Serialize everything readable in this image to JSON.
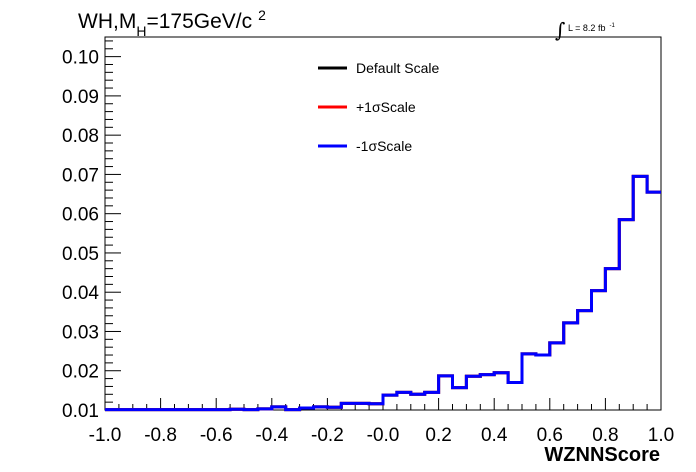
{
  "title": {
    "prefix": "WH,M",
    "subscript": "H",
    "suffix": "=175GeV/c",
    "superscript": "2"
  },
  "luminosity": {
    "integral": "∫",
    "text": "L = 8.2 fb",
    "superscript": "-1"
  },
  "chart_data": {
    "type": "line",
    "xlabel": "WZNNScore",
    "ylabel": "",
    "xlim": [
      -1.0,
      1.0
    ],
    "ylim": [
      0.01,
      0.105
    ],
    "x_ticks": [
      "-1.0",
      "-0.8",
      "-0.6",
      "-0.4",
      "-0.2",
      "-0.0",
      "0.2",
      "0.4",
      "0.6",
      "0.8",
      "1.0"
    ],
    "y_ticks": [
      "0.01",
      "0.02",
      "0.03",
      "0.04",
      "0.05",
      "0.06",
      "0.07",
      "0.08",
      "0.09",
      "0.10"
    ],
    "grid": false,
    "legend_position": "top-center",
    "bin_edges": [
      -1.0,
      -0.95,
      -0.9,
      -0.85,
      -0.8,
      -0.75,
      -0.7,
      -0.65,
      -0.6,
      -0.55,
      -0.5,
      -0.45,
      -0.4,
      -0.35,
      -0.3,
      -0.25,
      -0.2,
      -0.15,
      -0.1,
      -0.05,
      0.0,
      0.05,
      0.1,
      0.15,
      0.2,
      0.25,
      0.3,
      0.35,
      0.4,
      0.45,
      0.5,
      0.55,
      0.6,
      0.65,
      0.7,
      0.75,
      0.8,
      0.85,
      0.9,
      0.95,
      1.0
    ],
    "series": [
      {
        "name": "Default Scale",
        "color": "#000000",
        "values": [
          0.0101,
          0.0101,
          0.0101,
          0.0101,
          0.0101,
          0.0101,
          0.0101,
          0.0101,
          0.0101,
          0.0102,
          0.0101,
          0.0103,
          0.0108,
          0.0101,
          0.0105,
          0.0108,
          0.0107,
          0.0117,
          0.0117,
          0.0116,
          0.0138,
          0.0145,
          0.014,
          0.0145,
          0.0187,
          0.0157,
          0.0186,
          0.019,
          0.0195,
          0.017,
          0.0243,
          0.024,
          0.0271,
          0.0322,
          0.0353,
          0.0404,
          0.046,
          0.0585,
          0.0695,
          0.0655
        ]
      },
      {
        "name": "+1σScale",
        "color": "#ff0000",
        "values": [
          0.0101,
          0.0101,
          0.0101,
          0.0101,
          0.0101,
          0.0101,
          0.0101,
          0.0101,
          0.0101,
          0.0102,
          0.0101,
          0.0103,
          0.0108,
          0.0101,
          0.0105,
          0.0108,
          0.0107,
          0.0117,
          0.0117,
          0.0116,
          0.0138,
          0.0145,
          0.014,
          0.0145,
          0.0187,
          0.0157,
          0.0186,
          0.019,
          0.0195,
          0.017,
          0.0243,
          0.024,
          0.0271,
          0.0322,
          0.0353,
          0.0404,
          0.046,
          0.0585,
          0.0695,
          0.0655
        ]
      },
      {
        "name": "-1σScale",
        "color": "#0000ff",
        "values": [
          0.0101,
          0.0101,
          0.0101,
          0.0101,
          0.0101,
          0.0101,
          0.0101,
          0.0101,
          0.0101,
          0.0102,
          0.0101,
          0.0103,
          0.0108,
          0.0101,
          0.0105,
          0.0108,
          0.0107,
          0.0117,
          0.0117,
          0.0116,
          0.0138,
          0.0145,
          0.014,
          0.0145,
          0.0187,
          0.0157,
          0.0186,
          0.019,
          0.0195,
          0.017,
          0.0243,
          0.024,
          0.0271,
          0.0322,
          0.0353,
          0.0404,
          0.046,
          0.0585,
          0.0695,
          0.0655
        ]
      }
    ]
  }
}
